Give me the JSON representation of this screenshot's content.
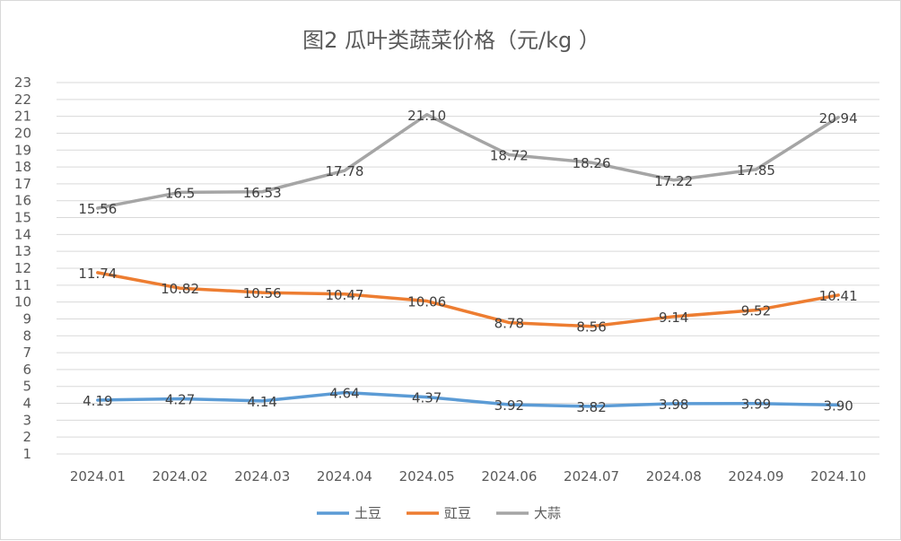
{
  "chart_data": {
    "type": "line",
    "title": "图2  瓜叶类蔬菜价格（元/kg ）",
    "categories": [
      "2024.01",
      "2024.02",
      "2024.03",
      "2024.04",
      "2024.05",
      "2024.06",
      "2024.07",
      "2024.08",
      "2024.09",
      "2024.10"
    ],
    "series": [
      {
        "name": "土豆",
        "color": "#5b9bd5",
        "values": [
          4.19,
          4.27,
          4.14,
          4.64,
          4.37,
          3.92,
          3.82,
          3.98,
          3.99,
          3.9
        ],
        "labels": [
          "4.19",
          "4.27",
          "4.14",
          "4.64",
          "4.37",
          "3.92",
          "3.82",
          "3.98",
          "3.99",
          "3.90"
        ]
      },
      {
        "name": "豇豆",
        "color": "#ed7d31",
        "values": [
          11.74,
          10.82,
          10.56,
          10.47,
          10.06,
          8.78,
          8.56,
          9.14,
          9.52,
          10.41
        ],
        "labels": [
          "11.74",
          "10.82",
          "10.56",
          "10.47",
          "10.06",
          "8.78",
          "8.56",
          "9.14",
          "9.52",
          "10.41"
        ]
      },
      {
        "name": "大蒜",
        "color": "#a5a5a5",
        "values": [
          15.56,
          16.5,
          16.53,
          17.78,
          21.1,
          18.72,
          18.26,
          17.22,
          17.85,
          20.94
        ],
        "labels": [
          "15.56",
          "16.5",
          "16.53",
          "17.78",
          "21.10",
          "18.72",
          "18.26",
          "17.22",
          "17.85",
          "20.94"
        ]
      }
    ],
    "ylim": [
      1,
      23
    ],
    "yticks": [
      "1",
      "2",
      "3",
      "4",
      "5",
      "6",
      "7",
      "8",
      "9",
      "10",
      "11",
      "12",
      "13",
      "14",
      "15",
      "16",
      "17",
      "18",
      "19",
      "20",
      "21",
      "22",
      "23"
    ],
    "grid": true,
    "legend_position": "bottom"
  }
}
